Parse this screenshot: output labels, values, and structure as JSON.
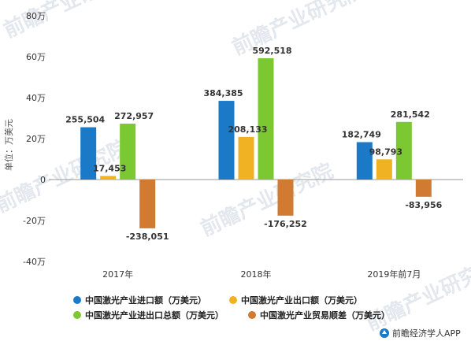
{
  "chart_data": {
    "type": "bar",
    "categories": [
      "2017年",
      "2018年",
      "2019年前7月"
    ],
    "series": [
      {
        "name": "中国激光产业进口额（万美元）",
        "color": "#1a7ac8",
        "values": [
          255504,
          384385,
          182749
        ],
        "labels": [
          "255,504",
          "384,385",
          "182,749"
        ]
      },
      {
        "name": "中国激光产业出口额（万美元）",
        "color": "#f0b222",
        "values": [
          17453,
          208133,
          98793
        ],
        "labels": [
          "17,453",
          "208,133",
          "98,793"
        ]
      },
      {
        "name": "中国激光产业进出口总额（万美元）",
        "color": "#7cc833",
        "values": [
          272957,
          592518,
          281542
        ],
        "labels": [
          "272,957",
          "592,518",
          "281,542"
        ]
      },
      {
        "name": "中国激光产业贸易顺差（万美元）",
        "color": "#d07a32",
        "values": [
          -238051,
          -176252,
          -83956
        ],
        "labels": [
          "-238,051",
          "-176,252",
          "-83,956"
        ]
      }
    ],
    "ylabel": "单位：万美元",
    "ylim": [
      -400000,
      800000
    ],
    "yticks": [
      {
        "value": 800000,
        "label": "80万"
      },
      {
        "value": 600000,
        "label": "60万"
      },
      {
        "value": 400000,
        "label": "40万"
      },
      {
        "value": 200000,
        "label": "20万"
      },
      {
        "value": 0,
        "label": "0"
      },
      {
        "value": -200000,
        "label": "-20万"
      },
      {
        "value": -400000,
        "label": "-40万"
      }
    ],
    "grid": false,
    "legend_position": "bottom"
  },
  "source": "前瞻经济学人APP"
}
